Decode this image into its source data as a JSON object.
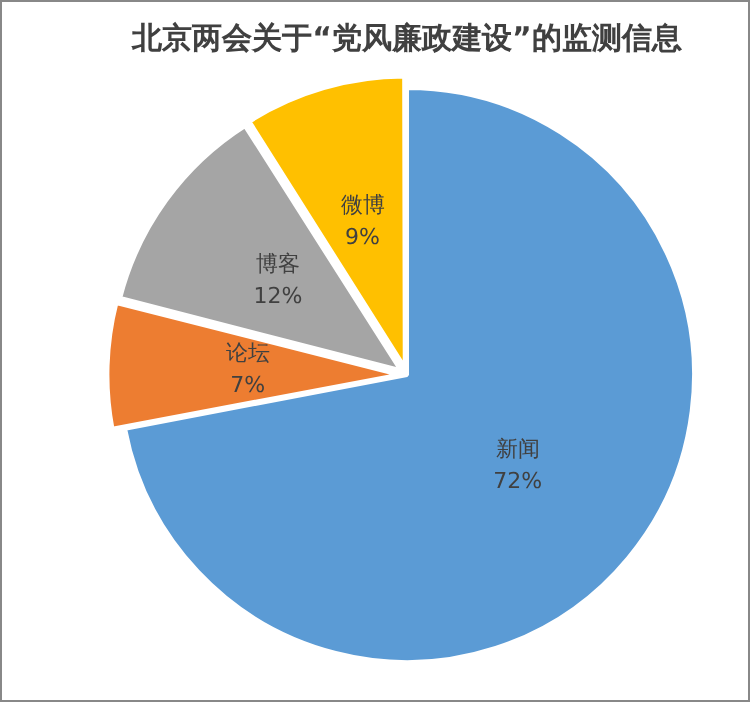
{
  "chart_data": {
    "type": "pie",
    "title": "北京两会关于“党风廉政建设”的监测信息",
    "categories": [
      "新闻",
      "论坛",
      "博客",
      "微博"
    ],
    "values": [
      72,
      7,
      12,
      9
    ],
    "colors": [
      "#5b9bd5",
      "#ed7d31",
      "#a5a5a5",
      "#ffc000"
    ],
    "value_labels": [
      "72%",
      "7%",
      "12%",
      "9%"
    ],
    "legend": false
  }
}
